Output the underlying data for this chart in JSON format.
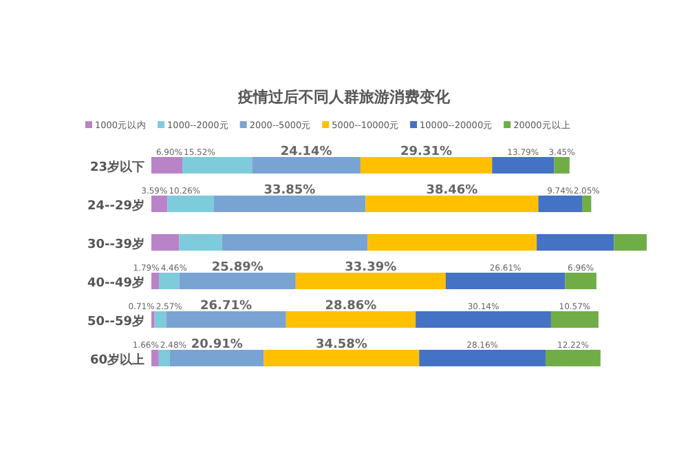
{
  "chart_data": {
    "type": "bar",
    "orientation": "horizontal",
    "stacked": true,
    "title": "疫情过后不同人群旅游消费变化",
    "legend": "top",
    "categories": [
      "23岁以下",
      "24--29岁",
      "30--39岁",
      "40--49岁",
      "50--59岁",
      "60岁以上"
    ],
    "series": [
      {
        "name": "1000元以内",
        "color": "#b983c8",
        "values": [
          6.9,
          3.59,
          6.2,
          1.79,
          0.71,
          1.66
        ],
        "value_labels": [
          "6.90%",
          "3.59%",
          null,
          "1.79%",
          "0.71%",
          "1.66%"
        ]
      },
      {
        "name": "1000--2000元",
        "color": "#7ecbdb",
        "values": [
          15.52,
          10.26,
          9.5,
          4.46,
          2.57,
          2.48
        ],
        "value_labels": [
          "15.52%",
          "10.26%",
          null,
          "4.46%",
          "2.57%",
          "2.48%"
        ]
      },
      {
        "name": "2000--5000元",
        "color": "#79a3d3",
        "values": [
          24.14,
          33.85,
          32.5,
          25.89,
          26.71,
          20.91
        ],
        "value_labels": [
          "24.14%",
          "33.85%",
          null,
          "25.89%",
          "26.71%",
          "20.91%"
        ]
      },
      {
        "name": "5000--10000元",
        "color": "#ffc000",
        "values": [
          29.31,
          38.46,
          37.6,
          33.39,
          28.86,
          34.58
        ],
        "value_labels": [
          "29.31%",
          "38.46%",
          null,
          "33.39%",
          "28.86%",
          "34.58%"
        ]
      },
      {
        "name": "10000--20000元",
        "color": "#4472c4",
        "values": [
          13.79,
          9.74,
          17.2,
          26.61,
          30.14,
          28.16
        ],
        "value_labels": [
          "13.79%",
          "9.74%",
          null,
          "26.61%",
          "30.14%",
          "28.16%"
        ]
      },
      {
        "name": "20000元以上",
        "color": "#70ad47",
        "values": [
          3.45,
          2.05,
          7.3,
          6.96,
          10.57,
          12.22
        ],
        "value_labels": [
          "3.45%",
          "2.05%",
          null,
          "6.96%",
          "10.57%",
          "12.22%"
        ]
      }
    ]
  }
}
